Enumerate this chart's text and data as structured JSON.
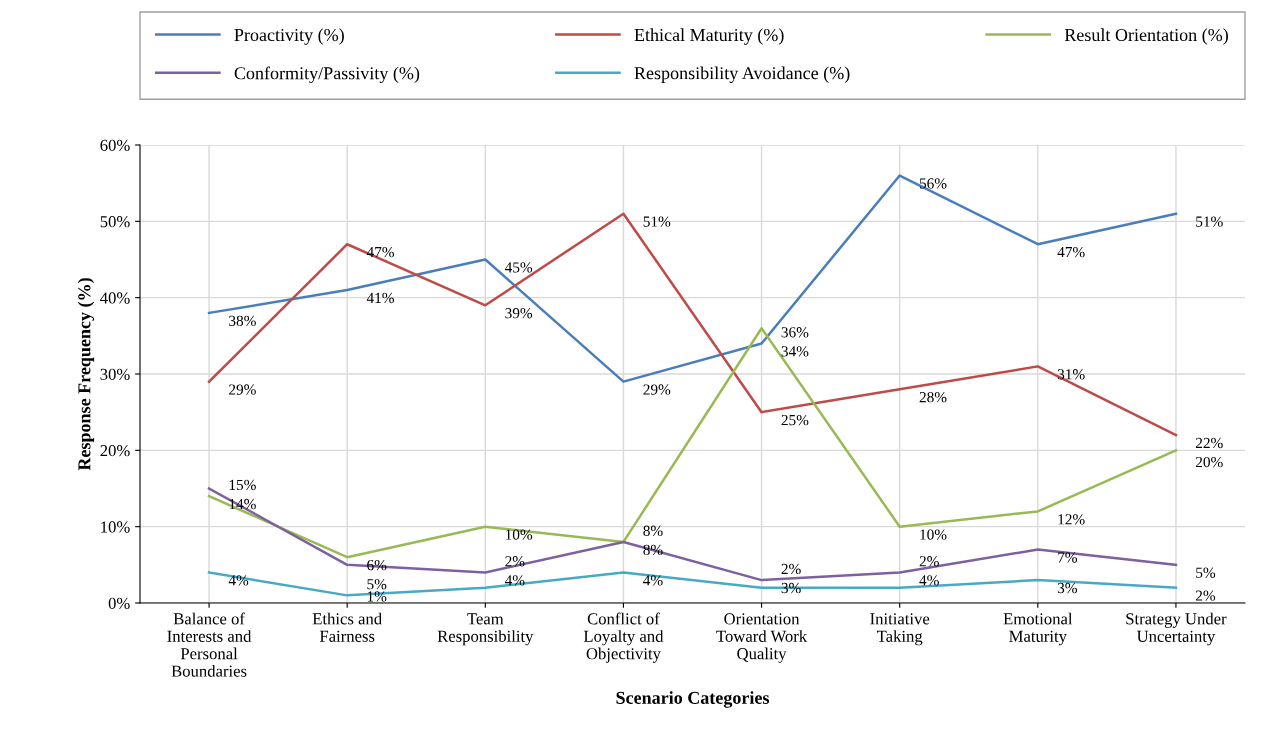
{
  "chart_data": {
    "type": "line",
    "xlabel": "Scenario Categories",
    "ylabel": "Response Frequency (%)",
    "categories": [
      "Balance of Interests and Personal Boundaries",
      "Ethics and Fairness",
      "Team Responsibility",
      "Conflict of Loyalty and Objectivity",
      "Orientation Toward Work Quality",
      "Initiative Taking",
      "Emotional Maturity",
      "Strategy Under Uncertainty"
    ],
    "series": [
      {
        "name": "Proactivity (%)",
        "color": "#4a7ebb",
        "values": [
          38,
          41,
          45,
          29,
          34,
          56,
          47,
          51
        ],
        "value_labels": [
          "38%",
          "41%",
          "45%",
          "29%",
          "34%",
          "56%",
          "47%",
          "51%"
        ]
      },
      {
        "name": "Ethical Maturity (%)",
        "color": "#be4b48",
        "values": [
          29,
          47,
          39,
          51,
          25,
          28,
          31,
          22
        ],
        "value_labels": [
          "29%",
          "47%",
          "39%",
          "51%",
          "25%",
          "28%",
          "31%",
          "22%"
        ]
      },
      {
        "name": "Result Orientation (%)",
        "color": "#98b954",
        "values": [
          14,
          6,
          10,
          8,
          36,
          10,
          12,
          20
        ],
        "value_labels": [
          "14%",
          "6%",
          "10%",
          "8%",
          "36%",
          "10%",
          "12%",
          "20%"
        ]
      },
      {
        "name": "Conformity/Passivity (%)",
        "color": "#7d60a0",
        "values": [
          15,
          5,
          4,
          8,
          3,
          4,
          7,
          5
        ],
        "value_labels": [
          "15%",
          "5%",
          "4%",
          "8%",
          "3%",
          "4%",
          "7%",
          "5%"
        ]
      },
      {
        "name": "Responsibility Avoidance (%)",
        "color": "#46aac5",
        "values": [
          4,
          1,
          2,
          4,
          2,
          2,
          3,
          2
        ],
        "value_labels": [
          "4%",
          "1%",
          "2%",
          "4%",
          "2%",
          "2%",
          "3%",
          "2%"
        ]
      }
    ],
    "ylim": [
      0,
      60
    ],
    "yticks": [
      {
        "value": 0,
        "label": "0%"
      },
      {
        "value": 10,
        "label": "10%"
      },
      {
        "value": 20,
        "label": "20%"
      },
      {
        "value": 30,
        "label": "30%"
      },
      {
        "value": 40,
        "label": "40%"
      },
      {
        "value": 50,
        "label": "50%"
      },
      {
        "value": 60,
        "label": "60%"
      }
    ],
    "grid": true,
    "legend": "top",
    "marker": "none",
    "line_style": "solid"
  }
}
